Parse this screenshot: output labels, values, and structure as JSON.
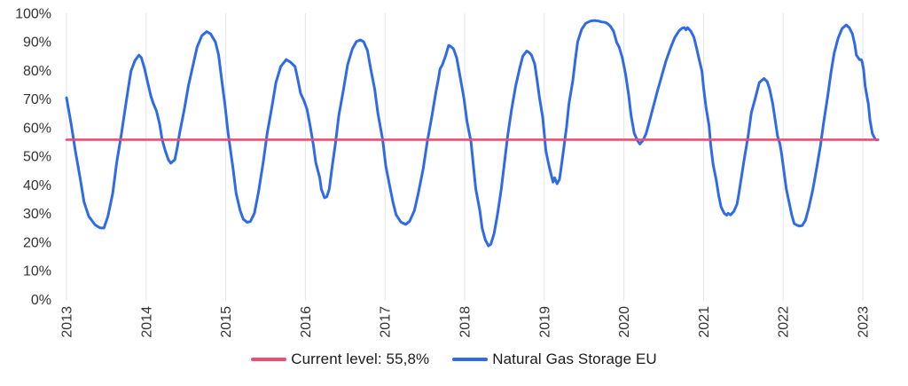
{
  "chart_data": {
    "type": "line",
    "title": "",
    "xlabel": "",
    "ylabel": "",
    "grid": "vertical-only",
    "legend_position": "bottom-center",
    "colors": {
      "grid": "#e5e5e5",
      "axis_text": "#333333",
      "series_blue": "#2e6be4",
      "reference_pink": "#ec4d74",
      "background": "#ffffff"
    },
    "x_axis": {
      "ticks": [
        "2013",
        "2014",
        "2015",
        "2016",
        "2017",
        "2018",
        "2019",
        "2020",
        "2021",
        "2022",
        "2023"
      ],
      "tick_years": [
        2013,
        2014,
        2015,
        2016,
        2017,
        2018,
        2019,
        2020,
        2021,
        2022,
        2023
      ],
      "range": [
        2013,
        2023.35
      ]
    },
    "y_axis": {
      "ticks": [
        "0%",
        "10%",
        "20%",
        "30%",
        "40%",
        "50%",
        "60%",
        "70%",
        "80%",
        "90%",
        "100%"
      ],
      "tick_values": [
        0,
        10,
        20,
        30,
        40,
        50,
        60,
        70,
        80,
        90,
        100
      ],
      "range": [
        0,
        100
      ],
      "unit": "%"
    },
    "reference_line": {
      "label": "Current level: 55,8%",
      "value": 55.8,
      "color": "#ec4d74",
      "x_start": 2013.0,
      "x_end": 2023.19
    },
    "series": [
      {
        "name": "Natural Gas Storage EU",
        "color": "#2e6be4",
        "points": [
          [
            2013.0,
            70.5
          ],
          [
            2013.06,
            61
          ],
          [
            2013.11,
            52
          ],
          [
            2013.17,
            42.5
          ],
          [
            2013.22,
            34
          ],
          [
            2013.28,
            29
          ],
          [
            2013.36,
            26
          ],
          [
            2013.42,
            25
          ],
          [
            2013.47,
            24.9
          ],
          [
            2013.52,
            29
          ],
          [
            2013.58,
            37
          ],
          [
            2013.63,
            47.8
          ],
          [
            2013.69,
            58
          ],
          [
            2013.74,
            67.4
          ],
          [
            2013.78,
            74.5
          ],
          [
            2013.81,
            79.8
          ],
          [
            2013.86,
            83.5
          ],
          [
            2013.91,
            85.4
          ],
          [
            2013.94,
            84.5
          ],
          [
            2013.98,
            80.7
          ],
          [
            2014.02,
            75.8
          ],
          [
            2014.06,
            71
          ],
          [
            2014.09,
            68.5
          ],
          [
            2014.13,
            65.8
          ],
          [
            2014.17,
            61.2
          ],
          [
            2014.2,
            55.9
          ],
          [
            2014.24,
            51.9
          ],
          [
            2014.28,
            48.8
          ],
          [
            2014.31,
            47.6
          ],
          [
            2014.36,
            48.8
          ],
          [
            2014.39,
            52.8
          ],
          [
            2014.42,
            58
          ],
          [
            2014.48,
            66.5
          ],
          [
            2014.53,
            74.5
          ],
          [
            2014.59,
            82
          ],
          [
            2014.64,
            88.2
          ],
          [
            2014.7,
            92.2
          ],
          [
            2014.76,
            93.6
          ],
          [
            2014.81,
            92.8
          ],
          [
            2014.87,
            90
          ],
          [
            2014.91,
            85.5
          ],
          [
            2014.94,
            78.8
          ],
          [
            2014.99,
            68
          ],
          [
            2015.03,
            58
          ],
          [
            2015.09,
            46
          ],
          [
            2015.13,
            37
          ],
          [
            2015.18,
            31.1
          ],
          [
            2015.22,
            28
          ],
          [
            2015.27,
            26.9
          ],
          [
            2015.31,
            27.2
          ],
          [
            2015.36,
            30.1
          ],
          [
            2015.41,
            37.3
          ],
          [
            2015.47,
            47.8
          ],
          [
            2015.52,
            58
          ],
          [
            2015.58,
            67.4
          ],
          [
            2015.63,
            75.8
          ],
          [
            2015.69,
            81.4
          ],
          [
            2015.76,
            83.8
          ],
          [
            2015.81,
            83
          ],
          [
            2015.87,
            81.4
          ],
          [
            2015.9,
            77.6
          ],
          [
            2015.94,
            72
          ],
          [
            2015.98,
            69.6
          ],
          [
            2016.02,
            66.5
          ],
          [
            2016.06,
            60.6
          ],
          [
            2016.1,
            54
          ],
          [
            2016.13,
            47.8
          ],
          [
            2016.18,
            42.5
          ],
          [
            2016.2,
            38.5
          ],
          [
            2016.24,
            35.5
          ],
          [
            2016.27,
            35.9
          ],
          [
            2016.3,
            38.5
          ],
          [
            2016.33,
            45
          ],
          [
            2016.38,
            55
          ],
          [
            2016.42,
            64.3
          ],
          [
            2016.48,
            73.6
          ],
          [
            2016.53,
            82
          ],
          [
            2016.59,
            87.6
          ],
          [
            2016.64,
            90.1
          ],
          [
            2016.69,
            90.7
          ],
          [
            2016.73,
            90.1
          ],
          [
            2016.78,
            87
          ],
          [
            2016.82,
            80.7
          ],
          [
            2016.87,
            73.6
          ],
          [
            2016.91,
            65.2
          ],
          [
            2016.97,
            55.9
          ],
          [
            2017.01,
            46.6
          ],
          [
            2017.06,
            39.4
          ],
          [
            2017.1,
            33.9
          ],
          [
            2017.14,
            29.5
          ],
          [
            2017.2,
            27
          ],
          [
            2017.26,
            26.2
          ],
          [
            2017.31,
            27.3
          ],
          [
            2017.37,
            31.1
          ],
          [
            2017.42,
            37.3
          ],
          [
            2017.48,
            45.7
          ],
          [
            2017.53,
            55
          ],
          [
            2017.59,
            64.3
          ],
          [
            2017.64,
            72.7
          ],
          [
            2017.67,
            77
          ],
          [
            2017.69,
            80.5
          ],
          [
            2017.72,
            82
          ],
          [
            2017.76,
            85
          ],
          [
            2017.8,
            88.8
          ],
          [
            2017.83,
            88.3
          ],
          [
            2017.86,
            87.6
          ],
          [
            2017.9,
            84.5
          ],
          [
            2017.94,
            78.3
          ],
          [
            2017.99,
            70.5
          ],
          [
            2018.03,
            62.1
          ],
          [
            2018.08,
            55
          ],
          [
            2018.11,
            46.6
          ],
          [
            2018.14,
            38.5
          ],
          [
            2018.19,
            31.1
          ],
          [
            2018.22,
            24.8
          ],
          [
            2018.26,
            20.8
          ],
          [
            2018.3,
            18.7
          ],
          [
            2018.33,
            19.3
          ],
          [
            2018.37,
            23
          ],
          [
            2018.41,
            29.2
          ],
          [
            2018.46,
            38.5
          ],
          [
            2018.5,
            47.8
          ],
          [
            2018.54,
            57.1
          ],
          [
            2018.59,
            66.5
          ],
          [
            2018.64,
            74.5
          ],
          [
            2018.69,
            80.7
          ],
          [
            2018.73,
            85
          ],
          [
            2018.78,
            86.8
          ],
          [
            2018.81,
            86.3
          ],
          [
            2018.84,
            85.4
          ],
          [
            2018.88,
            82.3
          ],
          [
            2018.91,
            76.7
          ],
          [
            2018.94,
            70.5
          ],
          [
            2018.98,
            63.7
          ],
          [
            2019.0,
            58
          ],
          [
            2019.02,
            51.9
          ],
          [
            2019.06,
            46.6
          ],
          [
            2019.09,
            43.2
          ],
          [
            2019.11,
            41
          ],
          [
            2019.13,
            42.5
          ],
          [
            2019.16,
            40.4
          ],
          [
            2019.19,
            41.9
          ],
          [
            2019.21,
            45.7
          ],
          [
            2019.24,
            51.9
          ],
          [
            2019.28,
            60.2
          ],
          [
            2019.31,
            68.3
          ],
          [
            2019.36,
            76.7
          ],
          [
            2019.39,
            83.8
          ],
          [
            2019.42,
            90.1
          ],
          [
            2019.47,
            94.4
          ],
          [
            2019.52,
            96.5
          ],
          [
            2019.58,
            97.3
          ],
          [
            2019.63,
            97.5
          ],
          [
            2019.68,
            97.3
          ],
          [
            2019.72,
            97
          ],
          [
            2019.77,
            96.8
          ],
          [
            2019.8,
            96.3
          ],
          [
            2019.83,
            95.5
          ],
          [
            2019.87,
            93.8
          ],
          [
            2019.91,
            89.8
          ],
          [
            2019.94,
            88.2
          ],
          [
            2019.98,
            84.5
          ],
          [
            2020.02,
            78.9
          ],
          [
            2020.06,
            71.4
          ],
          [
            2020.09,
            64.3
          ],
          [
            2020.13,
            58
          ],
          [
            2020.17,
            55.5
          ],
          [
            2020.2,
            54.3
          ],
          [
            2020.24,
            55.6
          ],
          [
            2020.28,
            58
          ],
          [
            2020.32,
            62.1
          ],
          [
            2020.37,
            67.4
          ],
          [
            2020.42,
            72.7
          ],
          [
            2020.47,
            77.6
          ],
          [
            2020.53,
            83.5
          ],
          [
            2020.59,
            88.2
          ],
          [
            2020.64,
            91.6
          ],
          [
            2020.69,
            93.8
          ],
          [
            2020.73,
            94.8
          ],
          [
            2020.76,
            95
          ],
          [
            2020.78,
            94.2
          ],
          [
            2020.8,
            95
          ],
          [
            2020.84,
            93.8
          ],
          [
            2020.88,
            91.6
          ],
          [
            2020.91,
            88.2
          ],
          [
            2020.94,
            84.5
          ],
          [
            2020.98,
            79.8
          ],
          [
            2021.0,
            74.2
          ],
          [
            2021.03,
            67.4
          ],
          [
            2021.07,
            60.6
          ],
          [
            2021.09,
            54
          ],
          [
            2021.12,
            47.2
          ],
          [
            2021.16,
            41.6
          ],
          [
            2021.19,
            36.3
          ],
          [
            2021.22,
            32.3
          ],
          [
            2021.26,
            30.1
          ],
          [
            2021.29,
            29.4
          ],
          [
            2021.31,
            30.1
          ],
          [
            2021.34,
            29.5
          ],
          [
            2021.38,
            30.7
          ],
          [
            2021.42,
            33.2
          ],
          [
            2021.44,
            36.3
          ],
          [
            2021.47,
            41.6
          ],
          [
            2021.51,
            48.8
          ],
          [
            2021.56,
            57.1
          ],
          [
            2021.6,
            65.2
          ],
          [
            2021.66,
            71.4
          ],
          [
            2021.7,
            75.8
          ],
          [
            2021.76,
            77.2
          ],
          [
            2021.8,
            76.1
          ],
          [
            2021.83,
            73.6
          ],
          [
            2021.87,
            68.3
          ],
          [
            2021.9,
            62.7
          ],
          [
            2021.93,
            57.1
          ],
          [
            2021.96,
            54.3
          ],
          [
            2021.98,
            50.9
          ],
          [
            2022.01,
            44.7
          ],
          [
            2022.04,
            38.5
          ],
          [
            2022.08,
            33.2
          ],
          [
            2022.11,
            29.2
          ],
          [
            2022.14,
            26.4
          ],
          [
            2022.2,
            25.6
          ],
          [
            2022.24,
            25.8
          ],
          [
            2022.28,
            27.6
          ],
          [
            2022.32,
            31.7
          ],
          [
            2022.37,
            37.9
          ],
          [
            2022.42,
            45.7
          ],
          [
            2022.47,
            54
          ],
          [
            2022.51,
            62.1
          ],
          [
            2022.56,
            71.1
          ],
          [
            2022.6,
            79.2
          ],
          [
            2022.64,
            86
          ],
          [
            2022.69,
            91.3
          ],
          [
            2022.74,
            94.7
          ],
          [
            2022.79,
            95.9
          ],
          [
            2022.83,
            95
          ],
          [
            2022.87,
            92.8
          ],
          [
            2022.9,
            89.1
          ],
          [
            2022.92,
            85.4
          ],
          [
            2022.96,
            83.8
          ],
          [
            2022.98,
            83.8
          ],
          [
            2022.99,
            83.2
          ],
          [
            2023.01,
            80.4
          ],
          [
            2023.03,
            74.5
          ],
          [
            2023.07,
            68.3
          ],
          [
            2023.09,
            62.7
          ],
          [
            2023.12,
            58
          ],
          [
            2023.16,
            55.8
          ],
          [
            2023.19,
            55.8
          ]
        ]
      }
    ]
  }
}
